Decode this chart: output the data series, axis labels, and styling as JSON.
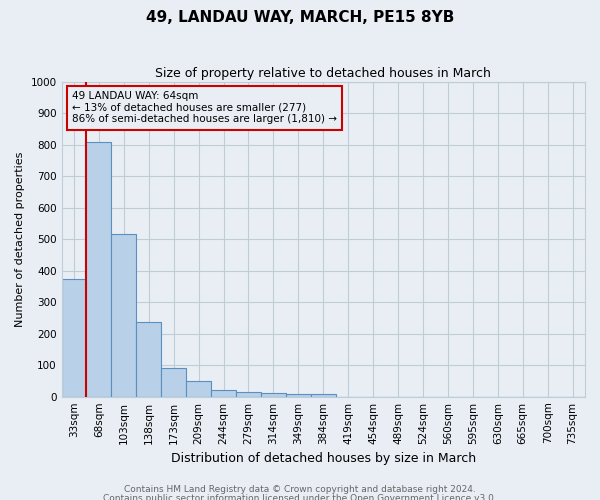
{
  "title": "49, LANDAU WAY, MARCH, PE15 8YB",
  "subtitle": "Size of property relative to detached houses in March",
  "xlabel": "Distribution of detached houses by size in March",
  "ylabel": "Number of detached properties",
  "footnote1": "Contains HM Land Registry data © Crown copyright and database right 2024.",
  "footnote2": "Contains public sector information licensed under the Open Government Licence v3.0.",
  "annotation_line1": "49 LANDAU WAY: 64sqm",
  "annotation_line2": "← 13% of detached houses are smaller (277)",
  "annotation_line3": "86% of semi-detached houses are larger (1,810) →",
  "bins": [
    "33sqm",
    "68sqm",
    "103sqm",
    "138sqm",
    "173sqm",
    "209sqm",
    "244sqm",
    "279sqm",
    "314sqm",
    "349sqm",
    "384sqm",
    "419sqm",
    "454sqm",
    "489sqm",
    "524sqm",
    "560sqm",
    "595sqm",
    "630sqm",
    "665sqm",
    "700sqm",
    "735sqm"
  ],
  "values": [
    375,
    810,
    515,
    238,
    92,
    50,
    22,
    15,
    12,
    8,
    8,
    0,
    0,
    0,
    0,
    0,
    0,
    0,
    0,
    0,
    0
  ],
  "bar_color": "#b8d0e8",
  "bar_edge_color": "#5a8fc0",
  "property_line_color": "#cc0000",
  "ylim": [
    0,
    1000
  ],
  "yticks": [
    0,
    100,
    200,
    300,
    400,
    500,
    600,
    700,
    800,
    900,
    1000
  ],
  "bg_color": "#e8eef4",
  "annotation_box_color": "#cc0000",
  "grid_color": "#c0ccd8",
  "title_fontsize": 11,
  "subtitle_fontsize": 9,
  "ylabel_fontsize": 8,
  "xlabel_fontsize": 9,
  "tick_fontsize": 7.5,
  "footnote_fontsize": 6.5,
  "footnote_color": "#666666"
}
